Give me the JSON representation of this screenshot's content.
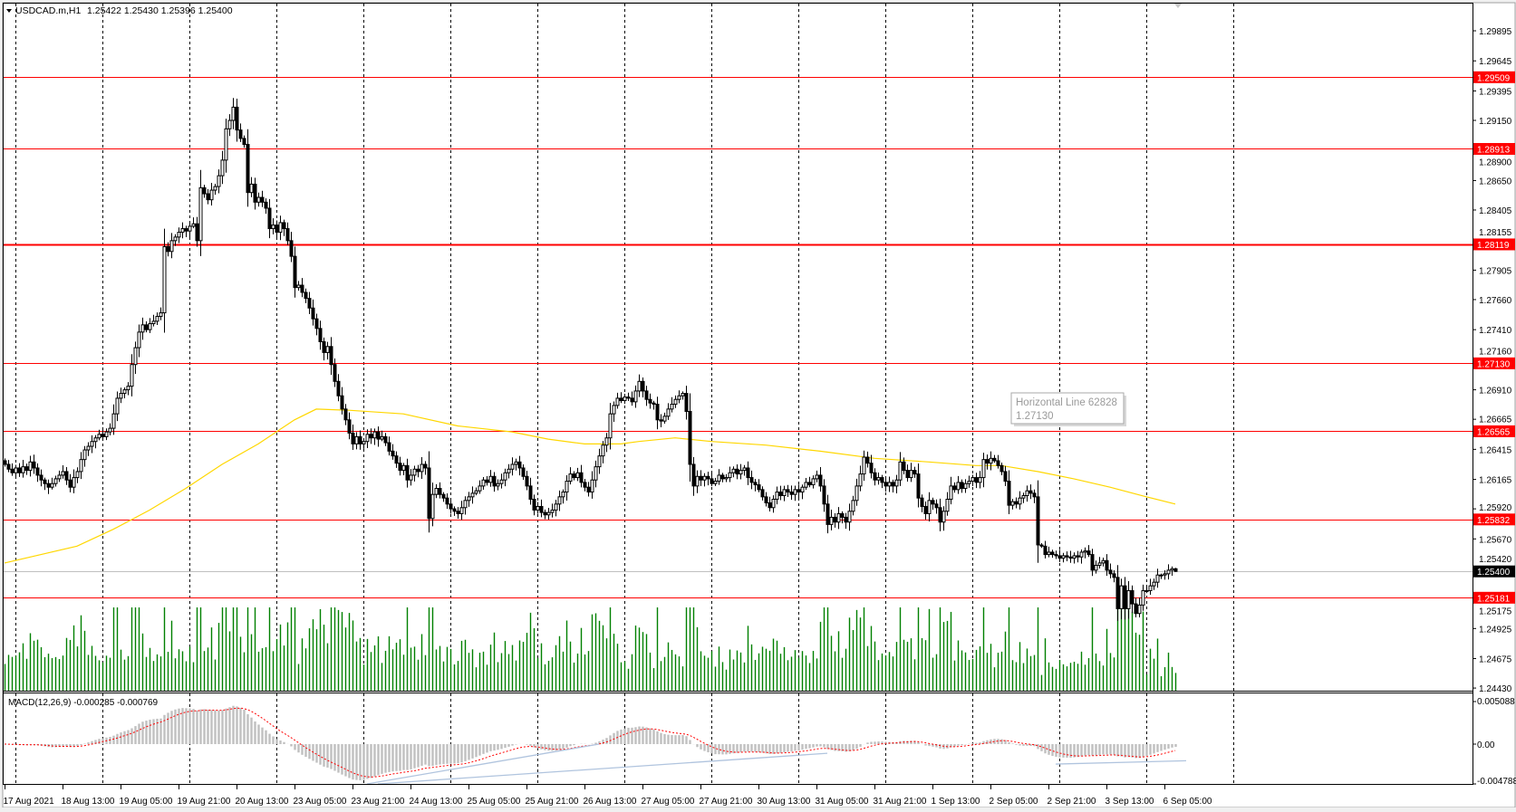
{
  "header": {
    "symbol_timeframe": "USDCAD.m,H1",
    "ohlc": "1.25422 1.25430 1.25396 1.25400",
    "menu_icon": "triangle-down-icon"
  },
  "colors": {
    "background": "#FFFFFF",
    "bull_body": "#FFFFFF",
    "bear_body": "#000000",
    "candle_outline": "#000000",
    "volume": "#008000",
    "horizontal_line": "#FF0000",
    "current_price_line": "#C0C0C0",
    "moving_average": "#FFD700",
    "macd_histogram": "#C0C0C0",
    "macd_signal": "#FF0000",
    "trendline": "#B0C4DE",
    "grid": "#000000"
  },
  "chart_data": {
    "type": "candlestick",
    "symbol": "USDCAD.m",
    "timeframe": "H1",
    "price_range": [
      1.24408,
      1.30121
    ],
    "closes": [
      1.2629,
      1.2625,
      1.2622,
      1.2626,
      1.2622,
      1.2627,
      1.2624,
      1.2631,
      1.2626,
      1.262,
      1.2616,
      1.2613,
      1.261,
      1.2613,
      1.2617,
      1.262,
      1.2623,
      1.2616,
      1.261,
      1.2618,
      1.2623,
      1.2633,
      1.2641,
      1.2644,
      1.2648,
      1.2651,
      1.2654,
      1.2652,
      1.2656,
      1.2659,
      1.2671,
      1.2684,
      1.2688,
      1.2691,
      1.2694,
      1.2712,
      1.2726,
      1.2739,
      1.2745,
      1.2741,
      1.2746,
      1.2748,
      1.2752,
      1.2755,
      1.281,
      1.2806,
      1.2815,
      1.2818,
      1.2822,
      1.2825,
      1.2823,
      1.2827,
      1.2829,
      1.2815,
      1.2859,
      1.2854,
      1.2849,
      1.2857,
      1.286,
      1.2869,
      1.2882,
      1.2908,
      1.2915,
      1.2926,
      1.2907,
      1.29,
      1.2895,
      1.2855,
      1.2862,
      1.2847,
      1.2851,
      1.2847,
      1.2842,
      1.2825,
      1.2828,
      1.2822,
      1.283,
      1.2825,
      1.2815,
      1.2802,
      1.2776,
      1.2778,
      1.2772,
      1.2767,
      1.2759,
      1.275,
      1.2742,
      1.2731,
      1.2722,
      1.2727,
      1.2712,
      1.2698,
      1.2686,
      1.2675,
      1.2666,
      1.2655,
      1.2646,
      1.2652,
      1.2646,
      1.2648,
      1.2654,
      1.2651,
      1.2656,
      1.265,
      1.2652,
      1.2647,
      1.264,
      1.2636,
      1.263,
      1.2624,
      1.2628,
      1.2616,
      1.262,
      1.2625,
      1.2623,
      1.2629,
      1.2626,
      1.2584,
      1.2604,
      1.2609,
      1.2604,
      1.2601,
      1.2596,
      1.2592,
      1.259,
      1.2588,
      1.2593,
      1.2599,
      1.2602,
      1.2605,
      1.2607,
      1.2611,
      1.2616,
      1.2614,
      1.2619,
      1.2611,
      1.2613,
      1.2616,
      1.2622,
      1.2625,
      1.2629,
      1.2631,
      1.2626,
      1.2619,
      1.2611,
      1.26,
      1.2591,
      1.2594,
      1.2589,
      1.2587,
      1.2589,
      1.2591,
      1.2596,
      1.2602,
      1.2606,
      1.2615,
      1.2621,
      1.2618,
      1.2622,
      1.2614,
      1.261,
      1.2606,
      1.2616,
      1.2627,
      1.2636,
      1.2645,
      1.2651,
      1.2671,
      1.2678,
      1.2684,
      1.2682,
      1.2685,
      1.2684,
      1.2681,
      1.269,
      1.2698,
      1.269,
      1.2683,
      1.268,
      1.2679,
      1.2666,
      1.2665,
      1.2669,
      1.2675,
      1.2679,
      1.2683,
      1.2686,
      1.2688,
      1.2673,
      1.2629,
      1.2611,
      1.2619,
      1.2616,
      1.2619,
      1.2617,
      1.2613,
      1.2615,
      1.262,
      1.2617,
      1.2618,
      1.2622,
      1.2625,
      1.2621,
      1.2624,
      1.2626,
      1.2618,
      1.2614,
      1.2612,
      1.2608,
      1.2602,
      1.2597,
      1.2593,
      1.26,
      1.2606,
      1.2603,
      1.2608,
      1.2606,
      1.2604,
      1.2608,
      1.2606,
      1.261,
      1.2614,
      1.2612,
      1.2617,
      1.262,
      1.2611,
      1.2596,
      1.2579,
      1.2585,
      1.2581,
      1.2588,
      1.2585,
      1.2581,
      1.259,
      1.2599,
      1.2611,
      1.2621,
      1.2635,
      1.263,
      1.2622,
      1.2616,
      1.2618,
      1.2614,
      1.2611,
      1.2614,
      1.2611,
      1.2616,
      1.2631,
      1.2624,
      1.2618,
      1.2624,
      1.2621,
      1.2601,
      1.2594,
      1.2588,
      1.2599,
      1.2596,
      1.2593,
      1.2581,
      1.259,
      1.26,
      1.2611,
      1.2608,
      1.2614,
      1.2609,
      1.2613,
      1.2615,
      1.2618,
      1.2614,
      1.2618,
      1.2633,
      1.263,
      1.2634,
      1.2632,
      1.2628,
      1.2623,
      1.2615,
      1.2595,
      1.2598,
      1.2596,
      1.2601,
      1.2603,
      1.2607,
      1.2605,
      1.2602,
      1.2562,
      1.2561,
      1.2554,
      1.2556,
      1.2554,
      1.2553,
      1.2551,
      1.2553,
      1.2552,
      1.2551,
      1.2553,
      1.2552,
      1.2556,
      1.2557,
      1.2554,
      1.2541,
      1.2545,
      1.2547,
      1.2549,
      1.2541,
      1.2538,
      1.2535,
      1.2509,
      1.2528,
      1.2509,
      1.2524,
      1.2513,
      1.2505,
      1.2512,
      1.2524,
      1.2524,
      1.2528,
      1.2531,
      1.2537,
      1.2537,
      1.2538,
      1.2541,
      1.25422,
      1.254
    ],
    "last_bar": {
      "open": 1.25422,
      "high": 1.2543,
      "low": 1.25396,
      "close": 1.254
    },
    "price_axis": {
      "ticks": [
        "1.29895",
        "1.29645",
        "1.29395",
        "1.29150",
        "1.28900",
        "1.28650",
        "1.28405",
        "1.28155",
        "1.27905",
        "1.27660",
        "1.27410",
        "1.27160",
        "1.26910",
        "1.26665",
        "1.26415",
        "1.26165",
        "1.25920",
        "1.25670",
        "1.25420",
        "1.25175",
        "1.24925",
        "1.24675",
        "1.24430"
      ]
    },
    "time_axis": {
      "labels": [
        "17 Aug 2021",
        "18 Aug 13:00",
        "19 Aug 05:00",
        "19 Aug 21:00",
        "20 Aug 13:00",
        "23 Aug 05:00",
        "23 Aug 21:00",
        "24 Aug 13:00",
        "25 Aug 05:00",
        "25 Aug 21:00",
        "26 Aug 13:00",
        "27 Aug 05:00",
        "27 Aug 21:00",
        "30 Aug 13:00",
        "31 Aug 05:00",
        "31 Aug 21:00",
        "1 Sep 13:00",
        "2 Sep 05:00",
        "2 Sep 21:00",
        "3 Sep 13:00",
        "6 Sep 05:00"
      ],
      "bars_per_label": 16,
      "bars_per_grid": 24
    },
    "horizontal_lines": [
      {
        "price": 1.29509,
        "label": "1.29509"
      },
      {
        "price": 1.28913,
        "label": "1.28913"
      },
      {
        "price": 1.28119,
        "label": "1.28119",
        "bold": true
      },
      {
        "price": 1.2713,
        "label": "1.27130"
      },
      {
        "price": 1.26565,
        "label": "1.26565"
      },
      {
        "price": 1.25832,
        "label": "1.25832"
      },
      {
        "price": 1.25181,
        "label": "1.25181"
      }
    ],
    "current_price": {
      "price": 1.254,
      "label": "1.25400"
    },
    "moving_average": {
      "points": [
        [
          0,
          1.2547
        ],
        [
          20,
          1.2561
        ],
        [
          30,
          1.2575
        ],
        [
          40,
          1.2591
        ],
        [
          50,
          1.2609
        ],
        [
          60,
          1.2629
        ],
        [
          70,
          1.2646
        ],
        [
          80,
          1.2666
        ],
        [
          86,
          1.2675
        ],
        [
          95,
          1.2674
        ],
        [
          110,
          1.2671
        ],
        [
          125,
          1.2661
        ],
        [
          140,
          1.2656
        ],
        [
          150,
          1.265
        ],
        [
          160,
          1.2646
        ],
        [
          170,
          1.2646
        ],
        [
          175,
          1.2648
        ],
        [
          185,
          1.2651
        ],
        [
          195,
          1.2648
        ],
        [
          210,
          1.2645
        ],
        [
          225,
          1.264
        ],
        [
          240,
          1.2634
        ],
        [
          255,
          1.2631
        ],
        [
          268,
          1.2628
        ],
        [
          275,
          1.2628
        ],
        [
          285,
          1.2623
        ],
        [
          295,
          1.2617
        ],
        [
          305,
          1.261
        ],
        [
          315,
          1.2602
        ],
        [
          323,
          1.2596
        ]
      ]
    },
    "macd": {
      "label": "MACD(12,26,9) -0.000285 -0.000769",
      "fast": 12,
      "slow": 26,
      "signal": 9,
      "range": [
        -0.004788,
        0.005088
      ],
      "axis_labels": [
        "0.005088",
        "0.00",
        "-0.004788"
      ],
      "trendlines": [
        [
          [
            100,
            -0.0048
          ],
          [
            164,
            0.0
          ]
        ],
        [
          [
            103,
            -0.0048
          ],
          [
            227,
            -0.0011
          ]
        ],
        [
          [
            290,
            -0.0024
          ],
          [
            326,
            -0.002
          ]
        ]
      ]
    }
  },
  "tooltip": {
    "title": "Horizontal Line 62828",
    "value": "1.27130"
  }
}
